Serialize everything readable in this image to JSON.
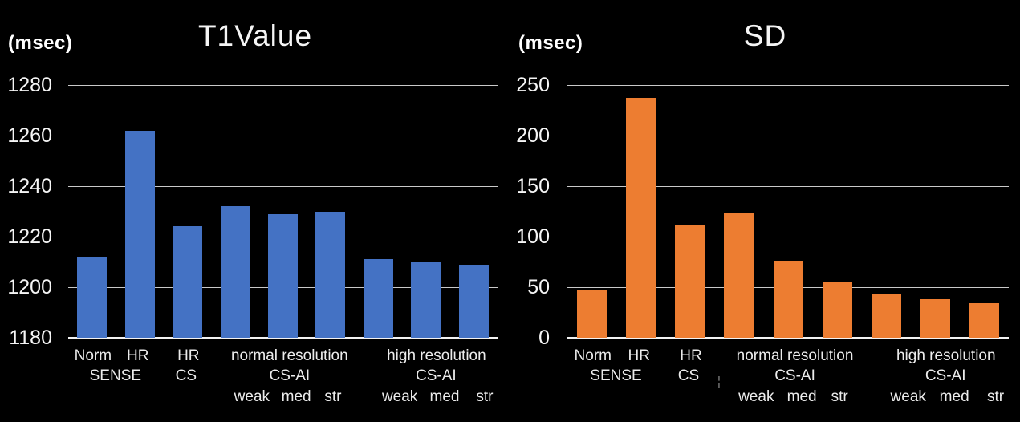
{
  "page": {
    "background_color": "#000000",
    "text_color": "#f5f5f5",
    "gridline_color": "#c9c9c9"
  },
  "chart_data": [
    {
      "type": "bar",
      "title": "T1Value",
      "ylabel": "(msec)",
      "categories": [
        "Norm SENSE",
        "HR SENSE",
        "HR CS",
        "normal resolution CS-AI weak",
        "normal resolution CS-AI med",
        "normal resolution CS-AI str",
        "high resolution CS-AI weak",
        "high resolution CS-AI med",
        "high resolution CS-AI str"
      ],
      "values": [
        1212,
        1262,
        1224,
        1232,
        1229,
        1230,
        1211,
        1210,
        1209
      ],
      "ylim": [
        1180,
        1280
      ],
      "yticks": [
        1280,
        1260,
        1240,
        1220,
        1200,
        1180
      ],
      "bar_color": "#4472C4",
      "grid": true,
      "legend": false
    },
    {
      "type": "bar",
      "title": "SD",
      "ylabel": "(msec)",
      "categories": [
        "Norm SENSE",
        "HR SENSE",
        "HR CS",
        "normal resolution CS-AI weak",
        "normal resolution CS-AI med",
        "normal resolution CS-AI str",
        "high resolution CS-AI weak",
        "high resolution CS-AI med",
        "high resolution CS-AI str"
      ],
      "values": [
        47,
        237,
        112,
        123,
        76,
        55,
        43,
        38,
        34
      ],
      "ylim": [
        0,
        250
      ],
      "yticks": [
        250,
        200,
        150,
        100,
        50,
        0
      ],
      "bar_color": "#ED7D31",
      "grid": true,
      "legend": false,
      "stray_mark": "¦"
    }
  ],
  "x_axis_labels": [
    {
      "text": "Norm",
      "row": 1,
      "pos": 0.52
    },
    {
      "text": "HR",
      "row": 1,
      "pos": 1.46
    },
    {
      "text": "HR",
      "row": 1,
      "pos": 2.52
    },
    {
      "text": "normal resolution",
      "row": 1,
      "pos": 4.64
    },
    {
      "text": "high resolution",
      "row": 1,
      "pos": 7.72
    },
    {
      "text": "SENSE",
      "row": 2,
      "pos": 0.99
    },
    {
      "text": "CS",
      "row": 2,
      "pos": 2.47
    },
    {
      "text": "CS-AI",
      "row": 2,
      "pos": 4.64
    },
    {
      "text": "CS-AI",
      "row": 2,
      "pos": 7.71
    },
    {
      "text": "weak",
      "row": 3,
      "pos": 3.85
    },
    {
      "text": "med",
      "row": 3,
      "pos": 4.78
    },
    {
      "text": "str",
      "row": 3,
      "pos": 5.55
    },
    {
      "text": "weak",
      "row": 3,
      "pos": 6.95
    },
    {
      "text": "med",
      "row": 3,
      "pos": 7.89
    },
    {
      "text": "str",
      "row": 3,
      "pos": 8.73
    }
  ]
}
